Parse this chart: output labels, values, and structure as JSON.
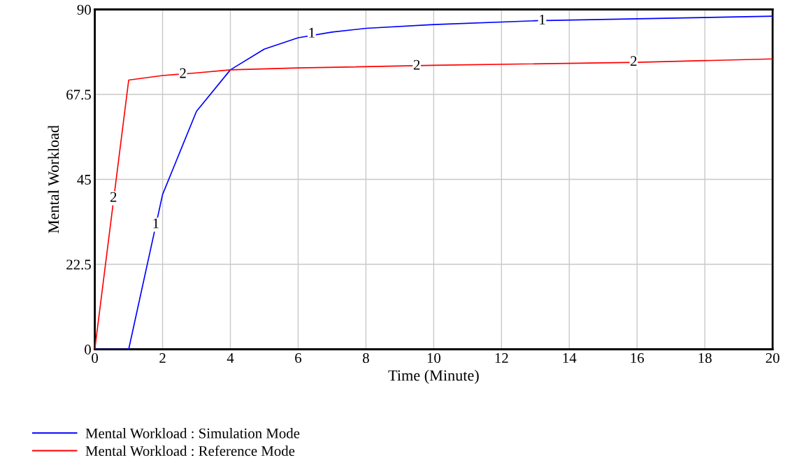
{
  "chart_data": {
    "type": "line",
    "xlabel": "Time (Minute)",
    "ylabel": "Mental Workload",
    "xlim": [
      0,
      20
    ],
    "ylim": [
      0,
      90
    ],
    "xticks": [
      0,
      2,
      4,
      6,
      8,
      10,
      12,
      14,
      16,
      18,
      20
    ],
    "yticks": [
      0,
      22.5,
      45,
      67.5,
      90
    ],
    "grid": true,
    "legend": "bottom",
    "series": [
      {
        "name": "Mental Workload : Simulation Mode",
        "color": "#0000ff",
        "x": [
          0,
          1,
          2,
          3,
          4,
          5,
          6,
          7,
          8,
          10,
          13,
          20
        ],
        "values": [
          0,
          0,
          41,
          63,
          74,
          79.5,
          82.5,
          84,
          85,
          86,
          87,
          88.2
        ]
      },
      {
        "name": "Mental Workload : Reference Mode",
        "color": "#ff0000",
        "x": [
          0,
          1,
          2,
          3,
          4,
          6,
          10,
          16,
          20
        ],
        "values": [
          0,
          71.3,
          72.5,
          73.2,
          74,
          74.5,
          75.2,
          76,
          76.9
        ]
      }
    ],
    "annotations": [
      {
        "text": "1",
        "x": 1.8,
        "y": 33
      },
      {
        "text": "1",
        "x": 6.4,
        "y": 83.5
      },
      {
        "text": "1",
        "x": 13.2,
        "y": 87
      },
      {
        "text": "2",
        "x": 0.55,
        "y": 40
      },
      {
        "text": "2",
        "x": 2.6,
        "y": 72.8
      },
      {
        "text": "2",
        "x": 9.5,
        "y": 75
      },
      {
        "text": "2",
        "x": 15.9,
        "y": 76
      }
    ]
  }
}
